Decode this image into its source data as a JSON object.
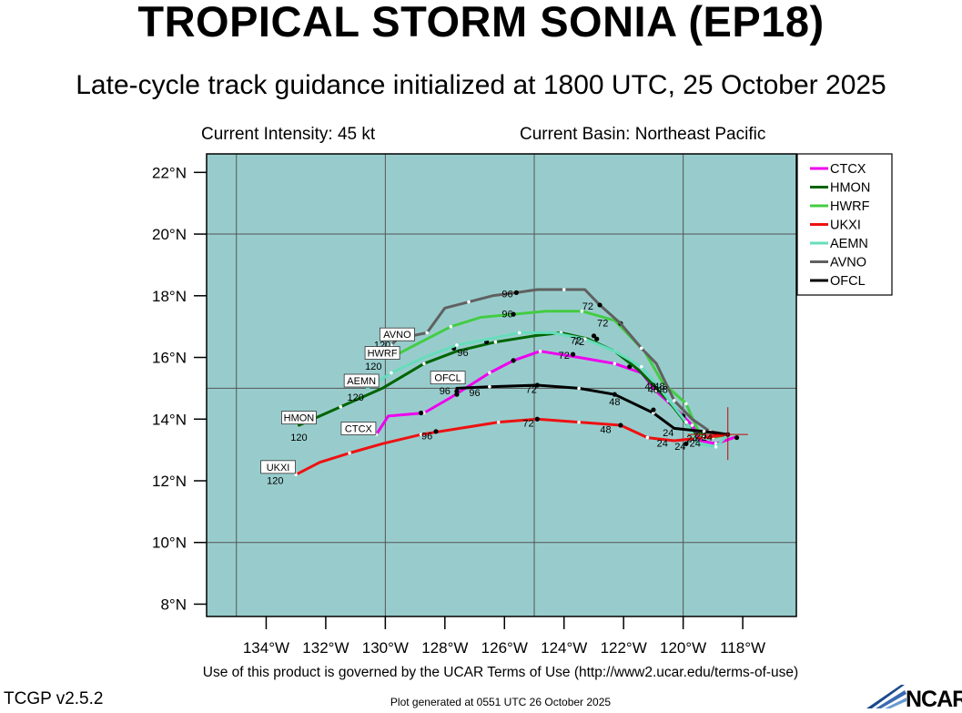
{
  "header": {
    "title": "TROPICAL STORM SONIA (EP18)",
    "subtitle": "Late-cycle track guidance initialized at 1800 UTC, 25 October 2025",
    "intensity": "Current Intensity: 45 kt",
    "basin": "Current Basin: Northeast Pacific"
  },
  "footer": {
    "terms": "Use of this product is governed by the UCAR Terms of Use (http://www2.ucar.edu/terms-of-use)",
    "version": "TCGP v2.5.2",
    "generated": "Plot generated at 0551 UTC   26 October 2025",
    "logo_text": "NCAR"
  },
  "colors": {
    "ocean": "#98cccc",
    "grid": "#555555"
  },
  "chart_data": {
    "type": "line",
    "xlim": [
      -136,
      -116.2
    ],
    "ylim": [
      7.6,
      22.6
    ],
    "x_ticks": [
      -134,
      -132,
      -130,
      -128,
      -126,
      -124,
      -122,
      -120,
      -118
    ],
    "x_tick_labels": [
      "134°W",
      "132°W",
      "130°W",
      "128°W",
      "126°W",
      "124°W",
      "122°W",
      "120°W",
      "118°W"
    ],
    "y_ticks": [
      8,
      10,
      12,
      14,
      16,
      18,
      20,
      22
    ],
    "y_tick_labels": [
      "8°N",
      "10°N",
      "12°N",
      "14°N",
      "16°N",
      "18°N",
      "20°N",
      "22°N"
    ],
    "grid_lon": [
      -135,
      -130,
      -125,
      -120
    ],
    "grid_lat": [
      10,
      15,
      20
    ],
    "legend_position": "top-right",
    "storm_position": [
      -118.5,
      13.5
    ],
    "series": [
      {
        "name": "CTCX",
        "color": "#ee00ee",
        "lon": [
          -118.3,
          -118.9,
          -119.4,
          -119.7,
          -120.1,
          -120.9,
          -121.4,
          -122.3,
          -123.5,
          -124.8,
          -125.7,
          -126.5,
          -127.8,
          -128.7,
          -129.9,
          -130.3
        ],
        "lat": [
          13.4,
          13.2,
          13.3,
          13.8,
          14.2,
          14.9,
          15.5,
          15.8,
          16.0,
          16.2,
          15.9,
          15.5,
          14.7,
          14.2,
          14.1,
          13.5
        ],
        "dots": [
          [
            -118.2,
            13.4
          ],
          [
            -119.9,
            13.2
          ],
          [
            -121.8,
            15.7
          ],
          [
            -123.7,
            16.1
          ],
          [
            -125.7,
            15.9
          ],
          [
            -127.6,
            14.8
          ],
          [
            -128.8,
            14.2
          ]
        ],
        "labels": [
          {
            "text": "72",
            "lon": -124.0,
            "lat": 15.95
          },
          {
            "text": "96",
            "lon": -127.0,
            "lat": 14.75
          }
        ],
        "tag": {
          "text": "CTCX",
          "lon": -130.9,
          "lat": 13.55
        }
      },
      {
        "name": "HMON",
        "color": "#006400",
        "lon": [
          -118.5,
          -119.1,
          -119.6,
          -120.5,
          -121.5,
          -122.3,
          -123.2,
          -124.1,
          -125.0,
          -126.3,
          -127.6,
          -128.7,
          -130.1,
          -131.5,
          -132.9
        ],
        "lat": [
          13.5,
          13.6,
          13.5,
          14.6,
          15.6,
          16.2,
          16.6,
          16.8,
          16.7,
          16.5,
          16.2,
          15.8,
          15.0,
          14.4,
          13.8
        ],
        "dots": [
          [
            -120.0,
            14.1
          ],
          [
            -123.0,
            16.7
          ],
          [
            -126.6,
            16.5
          ],
          [
            -127.7,
            16.3
          ]
        ],
        "labels": [
          {
            "text": "72",
            "lon": -123.5,
            "lat": 16.4
          },
          {
            "text": "96",
            "lon": -127.4,
            "lat": 16.05
          },
          {
            "text": "120",
            "lon": -132.9,
            "lat": 13.3
          }
        ],
        "tag": {
          "text": "HMON",
          "lon": -132.9,
          "lat": 13.9
        }
      },
      {
        "name": "HWRF",
        "color": "#44cc44",
        "lon": [
          -118.5,
          -119.0,
          -119.4,
          -119.9,
          -120.7,
          -121.3,
          -122.3,
          -123.4,
          -124.6,
          -125.7,
          -126.8,
          -127.8,
          -128.8,
          -129.8
        ],
        "lat": [
          13.5,
          13.4,
          13.4,
          14.5,
          15.2,
          16.2,
          17.2,
          17.5,
          17.5,
          17.4,
          17.3,
          17.0,
          16.5,
          16.0
        ],
        "dots": [
          [
            -122.1,
            17.1
          ],
          [
            -125.7,
            17.4
          ]
        ],
        "labels": [
          {
            "text": "72",
            "lon": -122.7,
            "lat": 17.0
          },
          {
            "text": "96",
            "lon": -125.9,
            "lat": 17.3
          },
          {
            "text": "120",
            "lon": -130.4,
            "lat": 15.6
          }
        ],
        "tag": {
          "text": "HWRF",
          "lon": -130.1,
          "lat": 16.0
        }
      },
      {
        "name": "UKXI",
        "color": "#ee1111",
        "lon": [
          -118.5,
          -119.3,
          -120.3,
          -121.2,
          -122.1,
          -123.5,
          -124.9,
          -126.2,
          -127.5,
          -128.8,
          -130.1,
          -131.2,
          -132.2,
          -133.0
        ],
        "lat": [
          13.5,
          13.4,
          13.3,
          13.4,
          13.8,
          13.9,
          14.0,
          13.9,
          13.7,
          13.5,
          13.2,
          12.9,
          12.6,
          12.2
        ],
        "dots": [
          [
            -122.1,
            13.8
          ],
          [
            -124.9,
            14.0
          ],
          [
            -128.3,
            13.6
          ]
        ],
        "labels": [
          {
            "text": "24",
            "lon": -120.7,
            "lat": 13.1
          },
          {
            "text": "48",
            "lon": -122.6,
            "lat": 13.55
          },
          {
            "text": "72",
            "lon": -125.2,
            "lat": 13.75
          },
          {
            "text": "96",
            "lon": -128.6,
            "lat": 13.35
          },
          {
            "text": "120",
            "lon": -133.7,
            "lat": 11.9
          }
        ],
        "tag": {
          "text": "UKXI",
          "lon": -133.6,
          "lat": 12.3
        }
      },
      {
        "name": "AEMN",
        "color": "#66ddbb",
        "lon": [
          -118.5,
          -118.9,
          -119.5,
          -119.9,
          -120.7,
          -121.4,
          -122.3,
          -123.3,
          -124.4,
          -125.5,
          -126.5,
          -127.6,
          -128.7,
          -129.8,
          -130.6
        ],
        "lat": [
          13.5,
          13.1,
          13.2,
          13.9,
          14.9,
          15.7,
          16.2,
          16.6,
          16.8,
          16.8,
          16.6,
          16.4,
          16.0,
          15.5,
          15.0
        ],
        "dots": [
          [
            -122.9,
            16.6
          ]
        ],
        "labels": [
          {
            "text": "72",
            "lon": -123.6,
            "lat": 16.45
          },
          {
            "text": "120",
            "lon": -131.0,
            "lat": 14.6
          }
        ],
        "tag": {
          "text": "AEMN",
          "lon": -130.8,
          "lat": 15.1
        }
      },
      {
        "name": "AVNO",
        "color": "#606060",
        "lon": [
          -118.5,
          -119.1,
          -119.7,
          -120.3,
          -120.9,
          -121.4,
          -122.1,
          -122.8,
          -123.3,
          -124.0,
          -124.9,
          -125.6,
          -126.4,
          -127.2,
          -128.0,
          -128.6,
          -129.6,
          -129.8
        ],
        "lat": [
          13.5,
          13.6,
          14.0,
          14.6,
          15.8,
          16.3,
          17.1,
          17.7,
          18.2,
          18.2,
          18.2,
          18.1,
          18.0,
          17.8,
          17.6,
          16.8,
          16.6,
          16.4
        ],
        "dots": [
          [
            -122.8,
            17.7
          ],
          [
            -125.6,
            18.1
          ]
        ],
        "labels": [
          {
            "text": "72",
            "lon": -123.2,
            "lat": 17.55
          },
          {
            "text": "96",
            "lon": -125.9,
            "lat": 17.95
          },
          {
            "text": "120",
            "lon": -130.1,
            "lat": 16.3
          }
        ],
        "tag": {
          "text": "AVNO",
          "lon": -129.6,
          "lat": 16.6
        }
      },
      {
        "name": "OFCL",
        "color": "#000000",
        "lon": [
          -118.5,
          -119.3,
          -120.3,
          -121.0,
          -122.3,
          -123.5,
          -124.9,
          -126.5,
          -127.6
        ],
        "lat": [
          13.5,
          13.6,
          13.7,
          14.2,
          14.8,
          15.0,
          15.1,
          15.05,
          15.0
        ],
        "dots": [
          [
            -118.5,
            13.5
          ],
          [
            -121.0,
            14.3
          ],
          [
            -122.3,
            14.8
          ],
          [
            -124.9,
            15.1
          ],
          [
            -127.6,
            14.9
          ]
        ],
        "labels": [
          {
            "text": "24",
            "lon": -120.5,
            "lat": 13.45
          },
          {
            "text": "48",
            "lon": -122.3,
            "lat": 14.45
          },
          {
            "text": "72",
            "lon": -125.1,
            "lat": 14.85
          },
          {
            "text": "96",
            "lon": -128.0,
            "lat": 14.8
          }
        ],
        "tag": {
          "text": "OFCL",
          "lon": -127.9,
          "lat": 15.2
        }
      }
    ],
    "clustered_labels": [
      {
        "text": "48",
        "lon": -121.1,
        "lat": 14.95
      },
      {
        "text": "48",
        "lon": -120.8,
        "lat": 14.95
      },
      {
        "text": "48",
        "lon": -121.0,
        "lat": 14.85
      },
      {
        "text": "48",
        "lon": -120.7,
        "lat": 14.85
      },
      {
        "text": "24",
        "lon": -119.7,
        "lat": 13.25
      },
      {
        "text": "24",
        "lon": -119.4,
        "lat": 13.35
      },
      {
        "text": "24",
        "lon": -119.6,
        "lat": 13.1
      },
      {
        "text": "24",
        "lon": -120.1,
        "lat": 13.0
      },
      {
        "text": "24",
        "lon": -119.2,
        "lat": 13.3
      }
    ]
  }
}
